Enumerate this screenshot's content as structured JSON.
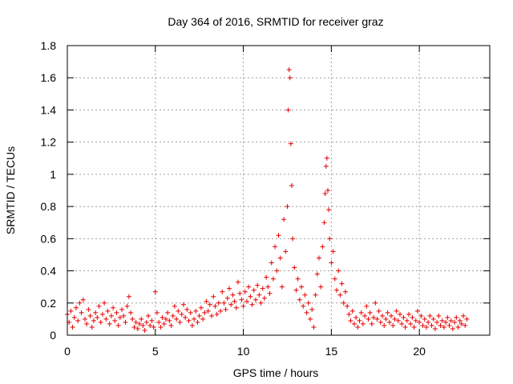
{
  "chart_data": {
    "type": "scatter",
    "title": "Day 364 of 2016, SRMTID for receiver graz",
    "xlabel": "GPS time / hours",
    "ylabel": "SRMTID / TECUs",
    "xlim": [
      0,
      24
    ],
    "ylim": [
      0,
      1.8
    ],
    "xticks": [
      0,
      5,
      10,
      15,
      20
    ],
    "xtick_labels": [
      "0",
      "5",
      "10",
      "15",
      "20"
    ],
    "yticks": [
      0,
      0.2,
      0.4,
      0.6,
      0.8,
      1.0,
      1.2,
      1.4,
      1.6,
      1.8
    ],
    "ytick_labels": [
      "0",
      "0.2",
      "0.4",
      "0.6",
      "0.8",
      "1",
      "1.2",
      "1.4",
      "1.6",
      "1.8"
    ],
    "grid": true,
    "marker": "+",
    "color": "#e60000",
    "series": [
      {
        "name": "SRMTID",
        "points": [
          [
            0.0,
            0.13
          ],
          [
            0.1,
            0.08
          ],
          [
            0.2,
            0.15
          ],
          [
            0.3,
            0.05
          ],
          [
            0.4,
            0.11
          ],
          [
            0.5,
            0.17
          ],
          [
            0.6,
            0.09
          ],
          [
            0.7,
            0.2
          ],
          [
            0.8,
            0.14
          ],
          [
            0.9,
            0.22
          ],
          [
            1.0,
            0.1
          ],
          [
            1.1,
            0.07
          ],
          [
            1.2,
            0.16
          ],
          [
            1.3,
            0.12
          ],
          [
            1.4,
            0.05
          ],
          [
            1.5,
            0.09
          ],
          [
            1.6,
            0.14
          ],
          [
            1.7,
            0.11
          ],
          [
            1.8,
            0.18
          ],
          [
            1.9,
            0.08
          ],
          [
            2.0,
            0.13
          ],
          [
            2.1,
            0.2
          ],
          [
            2.2,
            0.1
          ],
          [
            2.3,
            0.15
          ],
          [
            2.4,
            0.07
          ],
          [
            2.5,
            0.12
          ],
          [
            2.6,
            0.17
          ],
          [
            2.7,
            0.09
          ],
          [
            2.8,
            0.14
          ],
          [
            2.9,
            0.06
          ],
          [
            3.0,
            0.11
          ],
          [
            3.1,
            0.16
          ],
          [
            3.2,
            0.12
          ],
          [
            3.3,
            0.08
          ],
          [
            3.4,
            0.18
          ],
          [
            3.5,
            0.24
          ],
          [
            3.6,
            0.14
          ],
          [
            3.7,
            0.1
          ],
          [
            3.8,
            0.05
          ],
          [
            3.9,
            0.08
          ],
          [
            4.0,
            0.04
          ],
          [
            4.1,
            0.07
          ],
          [
            4.2,
            0.1
          ],
          [
            4.3,
            0.06
          ],
          [
            4.4,
            0.03
          ],
          [
            4.5,
            0.08
          ],
          [
            4.6,
            0.12
          ],
          [
            4.7,
            0.06
          ],
          [
            4.8,
            0.09
          ],
          [
            4.9,
            0.05
          ],
          [
            5.0,
            0.27
          ],
          [
            5.1,
            0.14
          ],
          [
            5.2,
            0.08
          ],
          [
            5.3,
            0.05
          ],
          [
            5.4,
            0.11
          ],
          [
            5.5,
            0.07
          ],
          [
            5.6,
            0.1
          ],
          [
            5.7,
            0.14
          ],
          [
            5.8,
            0.09
          ],
          [
            5.9,
            0.06
          ],
          [
            6.0,
            0.12
          ],
          [
            6.1,
            0.18
          ],
          [
            6.2,
            0.1
          ],
          [
            6.3,
            0.15
          ],
          [
            6.4,
            0.08
          ],
          [
            6.5,
            0.13
          ],
          [
            6.6,
            0.19
          ],
          [
            6.7,
            0.11
          ],
          [
            6.8,
            0.16
          ],
          [
            6.9,
            0.09
          ],
          [
            7.0,
            0.14
          ],
          [
            7.1,
            0.06
          ],
          [
            7.2,
            0.1
          ],
          [
            7.3,
            0.15
          ],
          [
            7.4,
            0.08
          ],
          [
            7.5,
            0.12
          ],
          [
            7.6,
            0.17
          ],
          [
            7.7,
            0.1
          ],
          [
            7.8,
            0.14
          ],
          [
            7.9,
            0.21
          ],
          [
            8.0,
            0.15
          ],
          [
            8.1,
            0.19
          ],
          [
            8.2,
            0.12
          ],
          [
            8.3,
            0.24
          ],
          [
            8.4,
            0.18
          ],
          [
            8.5,
            0.13
          ],
          [
            8.6,
            0.2
          ],
          [
            8.7,
            0.15
          ],
          [
            8.8,
            0.27
          ],
          [
            8.9,
            0.2
          ],
          [
            9.0,
            0.16
          ],
          [
            9.1,
            0.23
          ],
          [
            9.2,
            0.29
          ],
          [
            9.3,
            0.19
          ],
          [
            9.4,
            0.25
          ],
          [
            9.5,
            0.21
          ],
          [
            9.6,
            0.17
          ],
          [
            9.7,
            0.33
          ],
          [
            9.8,
            0.26
          ],
          [
            9.9,
            0.22
          ],
          [
            10.0,
            0.18
          ],
          [
            10.1,
            0.27
          ],
          [
            10.2,
            0.21
          ],
          [
            10.3,
            0.3
          ],
          [
            10.4,
            0.24
          ],
          [
            10.5,
            0.19
          ],
          [
            10.6,
            0.28
          ],
          [
            10.7,
            0.22
          ],
          [
            10.8,
            0.31
          ],
          [
            10.9,
            0.25
          ],
          [
            11.0,
            0.2
          ],
          [
            11.1,
            0.29
          ],
          [
            11.2,
            0.23
          ],
          [
            11.3,
            0.36
          ],
          [
            11.4,
            0.3
          ],
          [
            11.5,
            0.26
          ],
          [
            11.6,
            0.45
          ],
          [
            11.7,
            0.35
          ],
          [
            11.8,
            0.55
          ],
          [
            11.9,
            0.4
          ],
          [
            12.0,
            0.62
          ],
          [
            12.1,
            0.48
          ],
          [
            12.2,
            0.3
          ],
          [
            12.3,
            0.72
          ],
          [
            12.4,
            0.52
          ],
          [
            12.5,
            0.8
          ],
          [
            12.55,
            1.4
          ],
          [
            12.6,
            1.65
          ],
          [
            12.65,
            1.6
          ],
          [
            12.7,
            1.19
          ],
          [
            12.75,
            0.93
          ],
          [
            12.8,
            0.6
          ],
          [
            12.9,
            0.42
          ],
          [
            13.0,
            0.28
          ],
          [
            13.1,
            0.35
          ],
          [
            13.2,
            0.22
          ],
          [
            13.3,
            0.3
          ],
          [
            13.4,
            0.18
          ],
          [
            13.5,
            0.25
          ],
          [
            13.6,
            0.14
          ],
          [
            13.7,
            0.2
          ],
          [
            13.8,
            0.1
          ],
          [
            13.9,
            0.16
          ],
          [
            14.0,
            0.05
          ],
          [
            14.1,
            0.25
          ],
          [
            14.2,
            0.38
          ],
          [
            14.3,
            0.48
          ],
          [
            14.4,
            0.3
          ],
          [
            14.5,
            0.55
          ],
          [
            14.6,
            0.7
          ],
          [
            14.65,
            0.88
          ],
          [
            14.7,
            1.05
          ],
          [
            14.75,
            1.1
          ],
          [
            14.8,
            0.9
          ],
          [
            14.85,
            0.78
          ],
          [
            14.9,
            0.6
          ],
          [
            15.0,
            0.45
          ],
          [
            15.1,
            0.52
          ],
          [
            15.2,
            0.35
          ],
          [
            15.3,
            0.28
          ],
          [
            15.4,
            0.4
          ],
          [
            15.5,
            0.25
          ],
          [
            15.6,
            0.32
          ],
          [
            15.7,
            0.2
          ],
          [
            15.8,
            0.27
          ],
          [
            15.9,
            0.18
          ],
          [
            16.0,
            0.13
          ],
          [
            16.1,
            0.09
          ],
          [
            16.2,
            0.15
          ],
          [
            16.3,
            0.07
          ],
          [
            16.4,
            0.11
          ],
          [
            16.5,
            0.05
          ],
          [
            16.6,
            0.09
          ],
          [
            16.7,
            0.14
          ],
          [
            16.8,
            0.07
          ],
          [
            16.9,
            0.12
          ],
          [
            17.0,
            0.18
          ],
          [
            17.1,
            0.1
          ],
          [
            17.2,
            0.14
          ],
          [
            17.3,
            0.07
          ],
          [
            17.4,
            0.11
          ],
          [
            17.5,
            0.2
          ],
          [
            17.6,
            0.1
          ],
          [
            17.7,
            0.15
          ],
          [
            17.8,
            0.08
          ],
          [
            17.9,
            0.12
          ],
          [
            18.0,
            0.06
          ],
          [
            18.1,
            0.1
          ],
          [
            18.2,
            0.14
          ],
          [
            18.3,
            0.08
          ],
          [
            18.4,
            0.12
          ],
          [
            18.5,
            0.06
          ],
          [
            18.6,
            0.1
          ],
          [
            18.7,
            0.15
          ],
          [
            18.8,
            0.09
          ],
          [
            18.9,
            0.13
          ],
          [
            19.0,
            0.07
          ],
          [
            19.1,
            0.11
          ],
          [
            19.2,
            0.05
          ],
          [
            19.3,
            0.09
          ],
          [
            19.4,
            0.13
          ],
          [
            19.5,
            0.07
          ],
          [
            19.6,
            0.11
          ],
          [
            19.7,
            0.05
          ],
          [
            19.8,
            0.09
          ],
          [
            19.9,
            0.15
          ],
          [
            20.0,
            0.08
          ],
          [
            20.1,
            0.12
          ],
          [
            20.2,
            0.06
          ],
          [
            20.3,
            0.1
          ],
          [
            20.4,
            0.05
          ],
          [
            20.5,
            0.08
          ],
          [
            20.6,
            0.12
          ],
          [
            20.7,
            0.06
          ],
          [
            20.8,
            0.1
          ],
          [
            20.9,
            0.04
          ],
          [
            21.0,
            0.08
          ],
          [
            21.1,
            0.12
          ],
          [
            21.2,
            0.06
          ],
          [
            21.3,
            0.09
          ],
          [
            21.4,
            0.05
          ],
          [
            21.5,
            0.08
          ],
          [
            21.6,
            0.11
          ],
          [
            21.7,
            0.06
          ],
          [
            21.8,
            0.09
          ],
          [
            21.9,
            0.04
          ],
          [
            22.0,
            0.08
          ],
          [
            22.1,
            0.11
          ],
          [
            22.2,
            0.05
          ],
          [
            22.3,
            0.09
          ],
          [
            22.4,
            0.07
          ],
          [
            22.5,
            0.12
          ],
          [
            22.6,
            0.06
          ],
          [
            22.7,
            0.1
          ]
        ]
      }
    ]
  }
}
